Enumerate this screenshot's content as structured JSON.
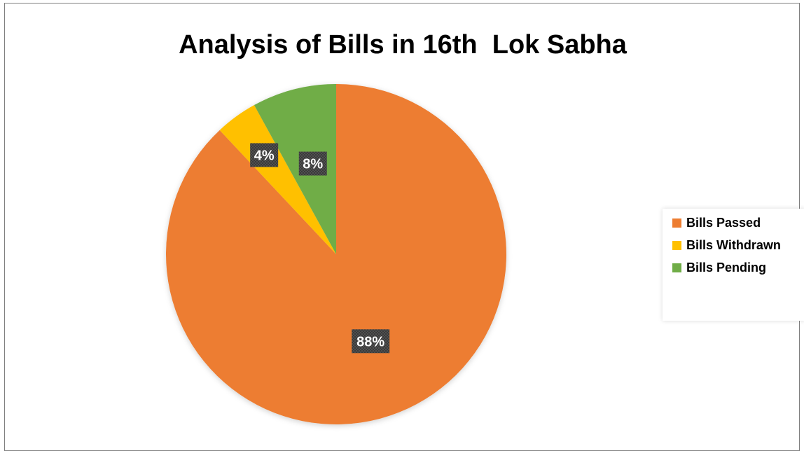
{
  "chart_data": {
    "type": "pie",
    "title": "Analysis of Bills in 16th  Lok Sabha",
    "categories": [
      "Bills Passed",
      "Bills Withdrawn",
      "Bills Pending"
    ],
    "values": [
      88,
      4,
      8
    ],
    "data_labels": [
      "88%",
      "4%",
      "8%"
    ],
    "colors": [
      "#ED7D31",
      "#FFC000",
      "#70AD47"
    ],
    "legend": "right"
  }
}
